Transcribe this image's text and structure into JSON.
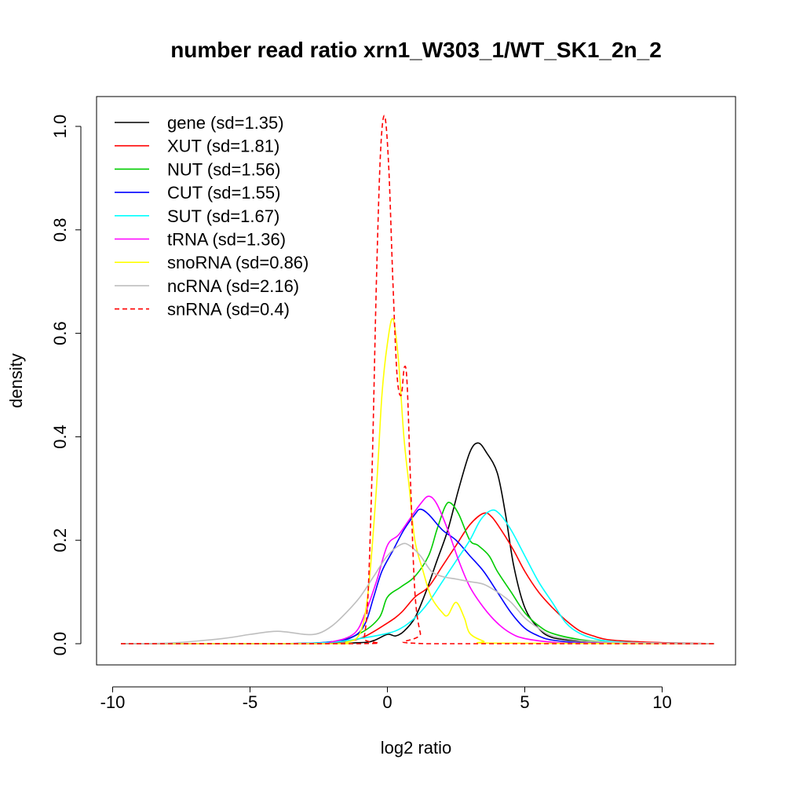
{
  "chart_data": {
    "type": "line",
    "title": "number read ratio xrn1_W303_1/WT_SK1_2n_2",
    "xlabel": "log2 ratio",
    "ylabel": "density",
    "xlim": [
      -10,
      12
    ],
    "ylim": [
      0,
      1.0
    ],
    "xticks": [
      -10,
      -5,
      0,
      5,
      10
    ],
    "xtick_labels": [
      "-10",
      "-5",
      "0",
      "5",
      "10"
    ],
    "yticks": [
      0.0,
      0.2,
      0.4,
      0.6,
      0.8,
      1.0
    ],
    "ytick_labels": [
      "0.0",
      "0.2",
      "0.4",
      "0.6",
      "0.8",
      "1.0"
    ],
    "grid": false,
    "legend_position": "top-left",
    "series": [
      {
        "name": "gene (sd=1.35)",
        "color": "#000000",
        "dash": false,
        "points": [
          [
            -9.7,
            0
          ],
          [
            -3,
            0
          ],
          [
            -1,
            0.002
          ],
          [
            -0.5,
            0.006
          ],
          [
            0,
            0.018
          ],
          [
            0.3,
            0.015
          ],
          [
            0.6,
            0.024
          ],
          [
            1,
            0.05
          ],
          [
            1.4,
            0.1
          ],
          [
            1.8,
            0.16
          ],
          [
            2.2,
            0.22
          ],
          [
            2.6,
            0.3
          ],
          [
            3.0,
            0.37
          ],
          [
            3.3,
            0.388
          ],
          [
            3.6,
            0.37
          ],
          [
            4.0,
            0.33
          ],
          [
            4.3,
            0.25
          ],
          [
            4.6,
            0.15
          ],
          [
            5.0,
            0.07
          ],
          [
            5.5,
            0.03
          ],
          [
            6.0,
            0.012
          ],
          [
            7.0,
            0.005
          ],
          [
            8.0,
            0.003
          ],
          [
            9.0,
            0.002
          ],
          [
            10.0,
            0.001
          ],
          [
            11.9,
            0
          ]
        ]
      },
      {
        "name": "XUT (sd=1.81)",
        "color": "#ff0000",
        "dash": false,
        "points": [
          [
            -9.7,
            0
          ],
          [
            -4,
            0
          ],
          [
            -2,
            0.003
          ],
          [
            -1,
            0.01
          ],
          [
            0,
            0.04
          ],
          [
            0.5,
            0.06
          ],
          [
            1.0,
            0.09
          ],
          [
            1.5,
            0.11
          ],
          [
            2.0,
            0.15
          ],
          [
            2.5,
            0.19
          ],
          [
            3.0,
            0.23
          ],
          [
            3.5,
            0.252
          ],
          [
            3.8,
            0.245
          ],
          [
            4.2,
            0.215
          ],
          [
            4.6,
            0.18
          ],
          [
            5.0,
            0.14
          ],
          [
            5.5,
            0.1
          ],
          [
            6.0,
            0.07
          ],
          [
            6.5,
            0.045
          ],
          [
            7.0,
            0.025
          ],
          [
            7.5,
            0.015
          ],
          [
            8.0,
            0.008
          ],
          [
            9.0,
            0.004
          ],
          [
            10.0,
            0.002
          ],
          [
            11.9,
            0
          ]
        ]
      },
      {
        "name": "NUT (sd=1.56)",
        "color": "#00cc00",
        "dash": false,
        "points": [
          [
            -9.7,
            0
          ],
          [
            -4,
            0
          ],
          [
            -2,
            0.004
          ],
          [
            -1,
            0.02
          ],
          [
            -0.3,
            0.05
          ],
          [
            0,
            0.09
          ],
          [
            0.5,
            0.11
          ],
          [
            1.0,
            0.13
          ],
          [
            1.5,
            0.17
          ],
          [
            1.8,
            0.22
          ],
          [
            2.1,
            0.265
          ],
          [
            2.3,
            0.272
          ],
          [
            2.6,
            0.25
          ],
          [
            3.0,
            0.2
          ],
          [
            3.3,
            0.19
          ],
          [
            3.7,
            0.17
          ],
          [
            4.0,
            0.14
          ],
          [
            4.5,
            0.1
          ],
          [
            5.0,
            0.06
          ],
          [
            5.5,
            0.035
          ],
          [
            6.0,
            0.02
          ],
          [
            7.0,
            0.008
          ],
          [
            8.0,
            0.003
          ],
          [
            9.0,
            0.001
          ],
          [
            11.9,
            0
          ]
        ]
      },
      {
        "name": "CUT (sd=1.55)",
        "color": "#0000ff",
        "dash": false,
        "points": [
          [
            -9.7,
            0
          ],
          [
            -4,
            0
          ],
          [
            -2,
            0.004
          ],
          [
            -1.2,
            0.015
          ],
          [
            -0.8,
            0.04
          ],
          [
            -0.5,
            0.09
          ],
          [
            -0.2,
            0.14
          ],
          [
            0.2,
            0.18
          ],
          [
            0.6,
            0.22
          ],
          [
            1.0,
            0.25
          ],
          [
            1.2,
            0.26
          ],
          [
            1.5,
            0.25
          ],
          [
            2.0,
            0.22
          ],
          [
            2.5,
            0.2
          ],
          [
            3.0,
            0.17
          ],
          [
            3.5,
            0.14
          ],
          [
            4.0,
            0.1
          ],
          [
            4.5,
            0.06
          ],
          [
            5.0,
            0.03
          ],
          [
            5.5,
            0.015
          ],
          [
            6.0,
            0.007
          ],
          [
            7.0,
            0.002
          ],
          [
            8.0,
            0.001
          ],
          [
            11.9,
            0
          ]
        ]
      },
      {
        "name": "SUT (sd=1.67)",
        "color": "#00ffff",
        "dash": false,
        "points": [
          [
            -9.7,
            0
          ],
          [
            -4,
            0
          ],
          [
            -2,
            0.003
          ],
          [
            -1,
            0.01
          ],
          [
            0,
            0.02
          ],
          [
            0.5,
            0.03
          ],
          [
            1.0,
            0.05
          ],
          [
            1.5,
            0.08
          ],
          [
            2.0,
            0.12
          ],
          [
            2.5,
            0.16
          ],
          [
            3.0,
            0.2
          ],
          [
            3.4,
            0.24
          ],
          [
            3.8,
            0.258
          ],
          [
            4.1,
            0.25
          ],
          [
            4.5,
            0.22
          ],
          [
            5.0,
            0.17
          ],
          [
            5.5,
            0.12
          ],
          [
            6.0,
            0.08
          ],
          [
            6.5,
            0.04
          ],
          [
            7.0,
            0.02
          ],
          [
            7.5,
            0.01
          ],
          [
            8.0,
            0.005
          ],
          [
            9.0,
            0.002
          ],
          [
            10.0,
            0.001
          ],
          [
            11.9,
            0
          ]
        ]
      },
      {
        "name": "tRNA (sd=1.36)",
        "color": "#ff00ff",
        "dash": false,
        "points": [
          [
            -9.7,
            0
          ],
          [
            -3,
            0
          ],
          [
            -2,
            0.004
          ],
          [
            -1.2,
            0.02
          ],
          [
            -0.8,
            0.06
          ],
          [
            -0.4,
            0.12
          ],
          [
            0,
            0.19
          ],
          [
            0.4,
            0.21
          ],
          [
            0.8,
            0.24
          ],
          [
            1.2,
            0.27
          ],
          [
            1.5,
            0.285
          ],
          [
            1.8,
            0.27
          ],
          [
            2.2,
            0.22
          ],
          [
            2.6,
            0.16
          ],
          [
            3.0,
            0.11
          ],
          [
            3.5,
            0.07
          ],
          [
            4.0,
            0.04
          ],
          [
            4.5,
            0.02
          ],
          [
            5.0,
            0.01
          ],
          [
            6.0,
            0.003
          ],
          [
            7.0,
            0.001
          ],
          [
            11.9,
            0
          ]
        ]
      },
      {
        "name": "snoRNA (sd=0.86)",
        "color": "#ffff00",
        "dash": false,
        "points": [
          [
            -9.7,
            0
          ],
          [
            -2,
            0
          ],
          [
            -1.5,
            0.003
          ],
          [
            -1,
            0.02
          ],
          [
            -0.7,
            0.1
          ],
          [
            -0.4,
            0.3
          ],
          [
            -0.2,
            0.48
          ],
          [
            0,
            0.58
          ],
          [
            0.2,
            0.628
          ],
          [
            0.4,
            0.55
          ],
          [
            0.6,
            0.4
          ],
          [
            0.8,
            0.3
          ],
          [
            1.0,
            0.2
          ],
          [
            1.3,
            0.14
          ],
          [
            1.6,
            0.09
          ],
          [
            2.0,
            0.06
          ],
          [
            2.2,
            0.055
          ],
          [
            2.5,
            0.08
          ],
          [
            2.8,
            0.05
          ],
          [
            3.0,
            0.02
          ],
          [
            3.5,
            0.005
          ],
          [
            4.0,
            0.001
          ],
          [
            11.9,
            0
          ]
        ]
      },
      {
        "name": "ncRNA (sd=2.16)",
        "color": "#bebebe",
        "dash": false,
        "points": [
          [
            -9.7,
            0
          ],
          [
            -8,
            0.001
          ],
          [
            -6,
            0.01
          ],
          [
            -5,
            0.018
          ],
          [
            -4,
            0.024
          ],
          [
            -3,
            0.018
          ],
          [
            -2.5,
            0.02
          ],
          [
            -2,
            0.035
          ],
          [
            -1.5,
            0.06
          ],
          [
            -1,
            0.09
          ],
          [
            -0.5,
            0.13
          ],
          [
            0,
            0.17
          ],
          [
            0.5,
            0.192
          ],
          [
            0.8,
            0.19
          ],
          [
            1.2,
            0.17
          ],
          [
            1.6,
            0.14
          ],
          [
            2.0,
            0.13
          ],
          [
            2.5,
            0.125
          ],
          [
            3.0,
            0.12
          ],
          [
            3.5,
            0.115
          ],
          [
            4.0,
            0.1
          ],
          [
            4.5,
            0.08
          ],
          [
            5.0,
            0.05
          ],
          [
            5.5,
            0.03
          ],
          [
            6.0,
            0.015
          ],
          [
            7.0,
            0.006
          ],
          [
            8.0,
            0.003
          ],
          [
            9.0,
            0.002
          ],
          [
            10.0,
            0.001
          ],
          [
            11.9,
            0
          ]
        ]
      },
      {
        "name": "snRNA (sd=0.4)",
        "color": "#ff0000",
        "dash": true,
        "points": [
          [
            -9.7,
            0
          ],
          [
            -1,
            0
          ],
          [
            -0.85,
            0.01
          ],
          [
            -0.7,
            0.1
          ],
          [
            -0.55,
            0.35
          ],
          [
            -0.4,
            0.7
          ],
          [
            -0.25,
            0.95
          ],
          [
            -0.1,
            1.02
          ],
          [
            0.05,
            0.92
          ],
          [
            0.2,
            0.7
          ],
          [
            0.35,
            0.52
          ],
          [
            0.5,
            0.48
          ],
          [
            0.62,
            0.535
          ],
          [
            0.72,
            0.5
          ],
          [
            0.85,
            0.3
          ],
          [
            1.0,
            0.1
          ],
          [
            1.2,
            0.02
          ],
          [
            1.4,
            0
          ],
          [
            11.9,
            0
          ]
        ]
      }
    ]
  }
}
